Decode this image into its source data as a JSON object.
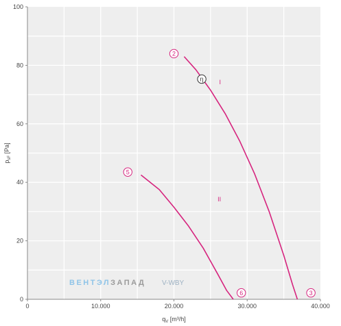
{
  "chart_data": {
    "type": "line",
    "title": "",
    "xlabel": "q",
    "xlabel_sub": "V",
    "xlabel_unit": "[m³/h]",
    "ylabel": "p",
    "ylabel_sub": "sF",
    "ylabel_unit": "[Pa]",
    "xlim": [
      0,
      40000
    ],
    "ylim": [
      0,
      100
    ],
    "x_ticks": [
      {
        "value": 0,
        "label": "0"
      },
      {
        "value": 10000,
        "label": "10.000"
      },
      {
        "value": 20000,
        "label": "20.000"
      },
      {
        "value": 30000,
        "label": "30.000"
      },
      {
        "value": 40000,
        "label": "40.000"
      }
    ],
    "y_ticks": [
      {
        "value": 0,
        "label": "0"
      },
      {
        "value": 20,
        "label": "20"
      },
      {
        "value": 40,
        "label": "40"
      },
      {
        "value": 60,
        "label": "60"
      },
      {
        "value": 80,
        "label": "80"
      },
      {
        "value": 100,
        "label": "100"
      }
    ],
    "x_grid": [
      5000,
      10000,
      15000,
      20000,
      25000,
      30000,
      35000
    ],
    "y_grid": [
      10,
      20,
      30,
      40,
      50,
      60,
      70,
      80,
      90
    ],
    "grid": true,
    "color": "#d6247e",
    "series": [
      {
        "name": "I",
        "x": [
          21400,
          23000,
          25000,
          27000,
          29000,
          31000,
          33000,
          35000,
          36200,
          36850
        ],
        "y": [
          83,
          78.5,
          71.5,
          63.5,
          54,
          43,
          30,
          15,
          5,
          0
        ],
        "label_at": [
          26300,
          73.5
        ]
      },
      {
        "name": "II",
        "x": [
          15500,
          18000,
          20000,
          22000,
          24000,
          26000,
          27200,
          28100
        ],
        "y": [
          42.5,
          37.5,
          31.5,
          25,
          17.5,
          8.5,
          3,
          0
        ],
        "label_at": [
          26200,
          33.5
        ]
      }
    ],
    "markers": [
      {
        "label": "2",
        "x": 20000,
        "y": 84,
        "style": "pink"
      },
      {
        "label": "η",
        "x": 23800,
        "y": 75.3,
        "style": "dark"
      },
      {
        "label": "5",
        "x": 13700,
        "y": 43.5,
        "style": "pink"
      },
      {
        "label": "6",
        "x": 29200,
        "y": 2.2,
        "style": "pink"
      },
      {
        "label": "3",
        "x": 38700,
        "y": 2.2,
        "style": "pink"
      }
    ]
  },
  "watermark": {
    "brand_part1": "ВЕНТЭЛ",
    "brand_part2": "ЗАПАД",
    "model": "V-WBY",
    "color1": "#8fc4e8",
    "color2": "#9b9b9b",
    "color_model": "#9fb3c4"
  }
}
